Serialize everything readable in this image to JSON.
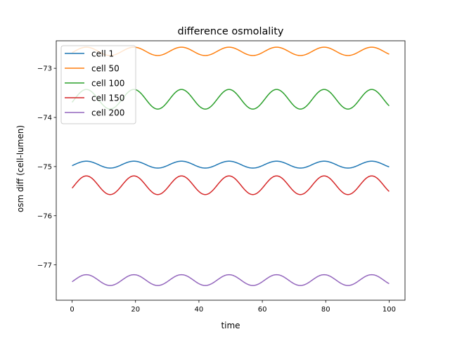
{
  "chart_data": {
    "type": "line",
    "title": "difference osmolality",
    "xlabel": "time",
    "ylabel": "osm diff (cell-lumen)",
    "xlim": [
      -5,
      105
    ],
    "ylim": [
      -77.72,
      -72.44
    ],
    "xticks": [
      0,
      20,
      40,
      60,
      80,
      100
    ],
    "yticks": [
      -77,
      -76,
      -75,
      -74,
      -73
    ],
    "xtick_labels": [
      "0",
      "20",
      "40",
      "60",
      "80",
      "100"
    ],
    "ytick_labels": [
      "−77",
      "−76",
      "−75",
      "−74",
      "−73"
    ],
    "grid": false,
    "legend_position": "top-left",
    "x_range": [
      0,
      100
    ],
    "series": [
      {
        "name": "cell 1",
        "color": "#1f77b4",
        "mean": -74.96,
        "amplitude": 0.07,
        "period": 15,
        "phase_peak": 4.5
      },
      {
        "name": "cell 50",
        "color": "#ff7f0e",
        "mean": -72.655,
        "amplitude": 0.085,
        "period": 15,
        "phase_peak": 4.5
      },
      {
        "name": "cell 100",
        "color": "#2ca02c",
        "mean": -73.63,
        "amplitude": 0.2,
        "period": 15,
        "phase_peak": 4.5
      },
      {
        "name": "cell 150",
        "color": "#d62728",
        "mean": -75.38,
        "amplitude": 0.19,
        "period": 15,
        "phase_peak": 4.5
      },
      {
        "name": "cell 200",
        "color": "#9467bd",
        "mean": -77.31,
        "amplitude": 0.11,
        "period": 15,
        "phase_peak": 4.5
      }
    ]
  }
}
